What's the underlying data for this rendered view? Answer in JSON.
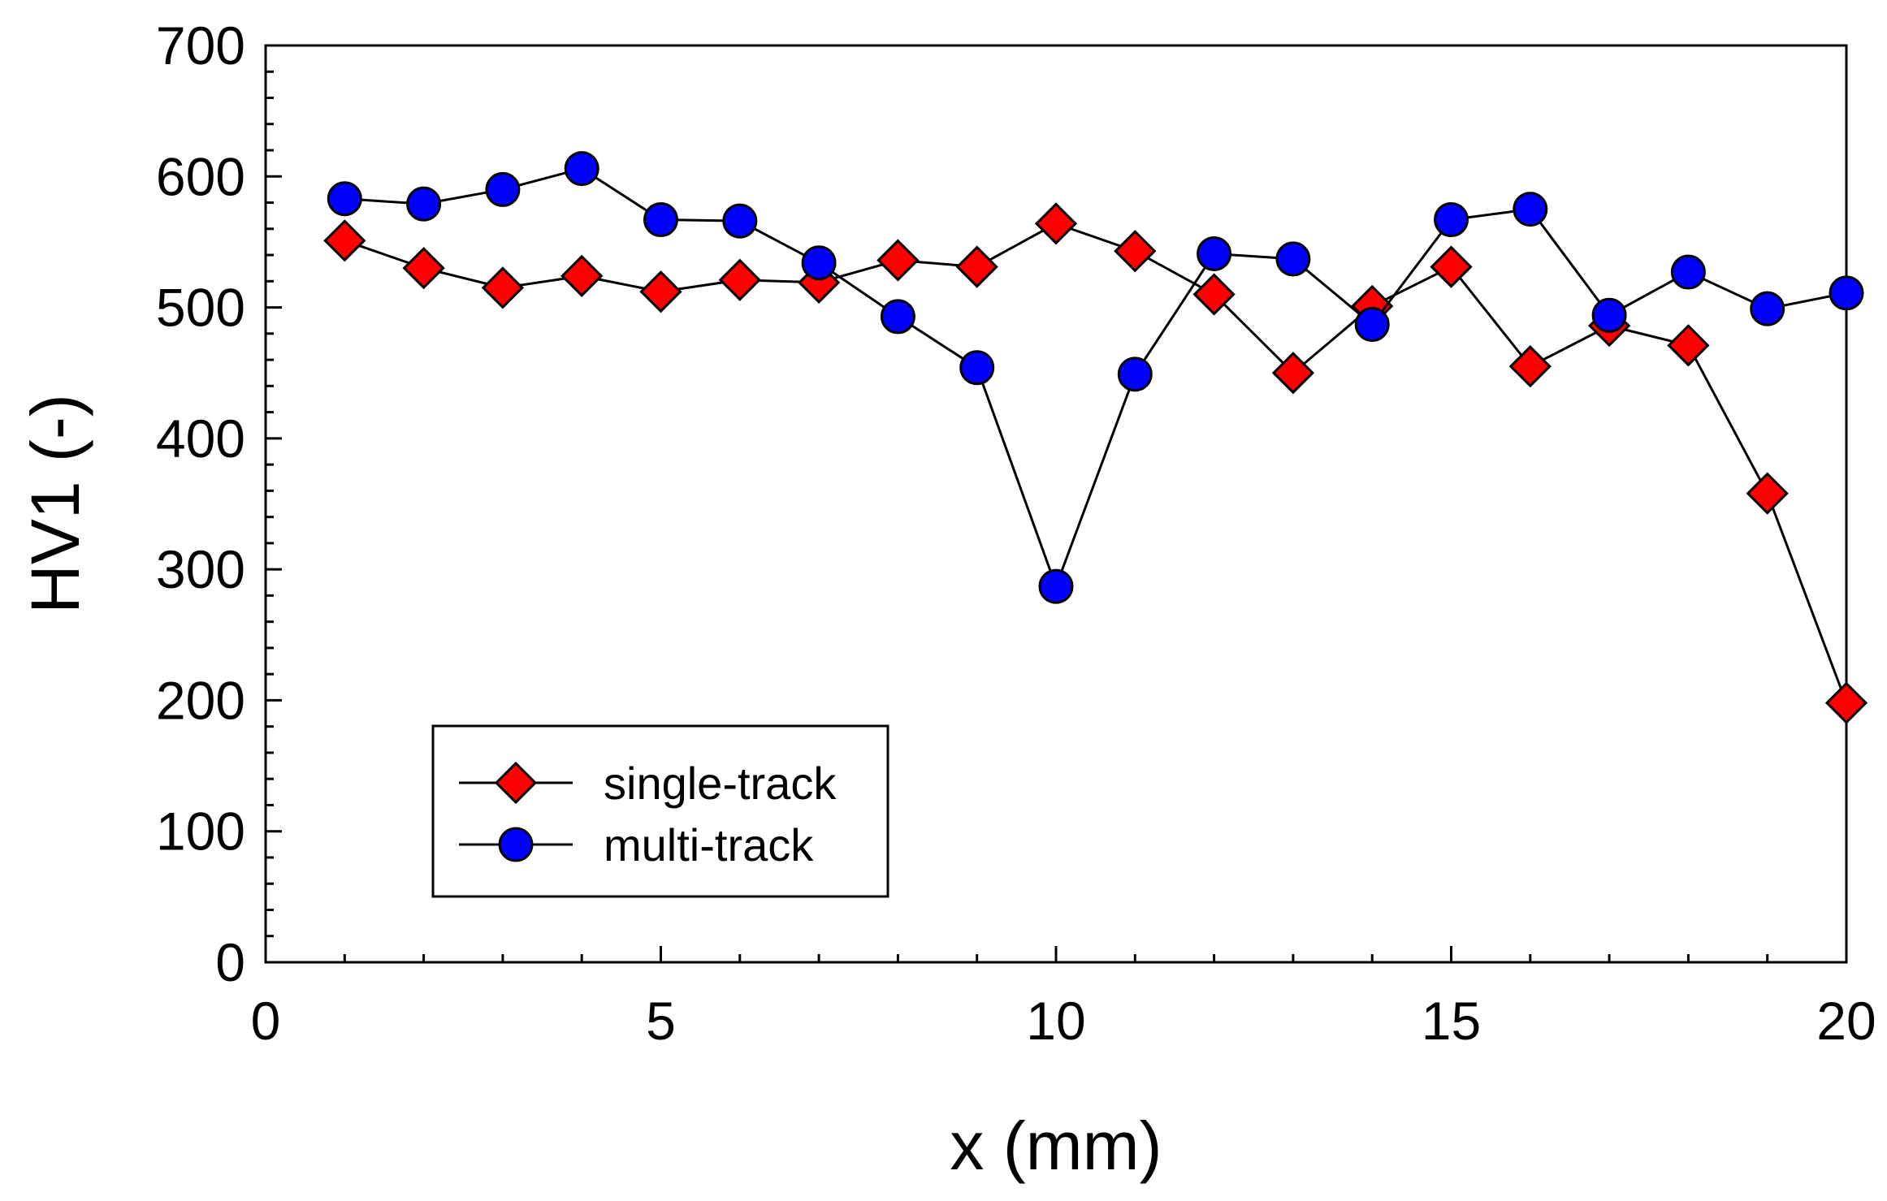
{
  "chart_data": {
    "type": "line",
    "title": "",
    "xlabel": "x (mm)",
    "ylabel": "HV1 (-)",
    "xlim": [
      0,
      20
    ],
    "ylim": [
      0,
      700
    ],
    "xticks": [
      0,
      5,
      10,
      15,
      20
    ],
    "yticks": [
      0,
      100,
      200,
      300,
      400,
      500,
      600,
      700
    ],
    "x_minor_step": 1,
    "y_minor_step": 20,
    "grid": false,
    "legend_position": "bottom-left",
    "x": [
      1,
      2,
      3,
      4,
      5,
      6,
      7,
      8,
      9,
      10,
      11,
      12,
      13,
      14,
      15,
      16,
      17,
      18,
      19,
      20
    ],
    "series": [
      {
        "name": "single-track",
        "marker": "diamond",
        "color": "#ff0000",
        "values": [
          551,
          530,
          515,
          524,
          512,
          521,
          519,
          536,
          531,
          564,
          543,
          510,
          450,
          501,
          531,
          455,
          486,
          471,
          358,
          198
        ]
      },
      {
        "name": "multi-track",
        "marker": "circle",
        "color": "#0000ff",
        "values": [
          583,
          579,
          590,
          606,
          567,
          566,
          534,
          493,
          454,
          287,
          449,
          541,
          537,
          487,
          567,
          575,
          494,
          527,
          499,
          511
        ]
      }
    ]
  }
}
